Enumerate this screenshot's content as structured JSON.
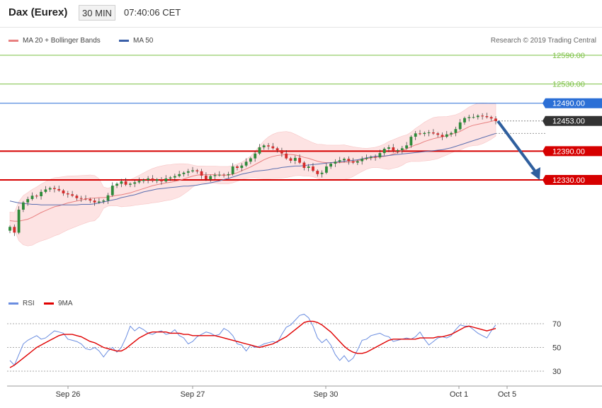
{
  "header": {
    "title": "Dax (Eurex)",
    "timeframe": "30 MIN",
    "clock": "07:40:06 CET"
  },
  "legend": {
    "ma20": "MA 20 + Bollinger Bands",
    "ma50": "MA 50",
    "credit": "Research © 2019 Trading Central",
    "rsi": "RSI",
    "rsi_ma": "9MA"
  },
  "colors": {
    "candle_up": "#2e8b3a",
    "candle_down": "#d62b2b",
    "ma20": "#e88080",
    "ma50": "#5b6fb0",
    "band_fill": "#fde3e3",
    "target_line": "#7bc043",
    "resistance_line": "#2b6fd6",
    "support_line": "#d60000",
    "current_label": "#333333",
    "arrow": "#2f5f9e",
    "rsi": "#6a8de0",
    "rsi_ma": "#e00000"
  },
  "chart_data": [
    {
      "type": "candlestick",
      "title": "Dax (Eurex)",
      "ylim": [
        12150,
        12600
      ],
      "x_tick_labels": [
        "Sep 26",
        "Sep 27",
        "Sep 30",
        "Oct 1",
        "Oct 5"
      ],
      "levels": [
        {
          "value": 12590.0,
          "label": "12590.00",
          "kind": "target"
        },
        {
          "value": 12530.0,
          "label": "12530.00",
          "kind": "target"
        },
        {
          "value": 12490.0,
          "label": "12490.00",
          "kind": "resistance"
        },
        {
          "value": 12453.0,
          "label": "12453.00",
          "kind": "current"
        },
        {
          "value": 12390.0,
          "label": "12390.00",
          "kind": "support"
        },
        {
          "value": 12330.0,
          "label": "12330.00",
          "kind": "support"
        }
      ],
      "close": [
        12232,
        12220,
        12268,
        12283,
        12290,
        12297,
        12296,
        12305,
        12310,
        12313,
        12311,
        12308,
        12302,
        12300,
        12297,
        12292,
        12291,
        12290,
        12287,
        12283,
        12285,
        12287,
        12298,
        12318,
        12322,
        12327,
        12320,
        12322,
        12325,
        12328,
        12330,
        12333,
        12328,
        12331,
        12327,
        12333,
        12335,
        12338,
        12342,
        12345,
        12348,
        12350,
        12348,
        12339,
        12331,
        12338,
        12340,
        12341,
        12340,
        12342,
        12358,
        12355,
        12360,
        12368,
        12375,
        12385,
        12398,
        12402,
        12400,
        12396,
        12392,
        12385,
        12375,
        12370,
        12376,
        12366,
        12355,
        12358,
        12349,
        12342,
        12345,
        12358,
        12364,
        12368,
        12371,
        12374,
        12369,
        12366,
        12369,
        12374,
        12376,
        12378,
        12377,
        12386,
        12395,
        12398,
        12390,
        12392,
        12396,
        12402,
        12420,
        12427,
        12426,
        12428,
        12429,
        12427,
        12424,
        12420,
        12425,
        12428,
        12436,
        12450,
        12459,
        12461,
        12461,
        12464,
        12463,
        12461,
        12458,
        12453
      ],
      "ma20": [
        12245,
        12244,
        12244,
        12246,
        12248,
        12252,
        12257,
        12262,
        12266,
        12270,
        12274,
        12276,
        12279,
        12282,
        12284,
        12286,
        12288,
        12290,
        12292,
        12292,
        12293,
        12293,
        12294,
        12296,
        12298,
        12299,
        12301,
        12303,
        12306,
        12309,
        12312,
        12315,
        12318,
        12320,
        12322,
        12324,
        12325,
        12327,
        12329,
        12332,
        12335,
        12338,
        12340,
        12341,
        12341,
        12341,
        12341,
        12340,
        12340,
        12340,
        12342,
        12345,
        12349,
        12353,
        12357,
        12362,
        12367,
        12372,
        12376,
        12379,
        12381,
        12382,
        12383,
        12383,
        12382,
        12380,
        12377,
        12375,
        12372,
        12369,
        12367,
        12366,
        12366,
        12366,
        12366,
        12367,
        12367,
        12368,
        12370,
        12372,
        12374,
        12376,
        12377,
        12378,
        12379,
        12381,
        12384,
        12387,
        12391,
        12395,
        12399,
        12403,
        12406,
        12410,
        12413,
        12416,
        12418,
        12420,
        12422,
        12425,
        12428,
        12431,
        12436,
        12441,
        12444,
        12446,
        12448,
        12450,
        12452,
        12455
      ],
      "ma50": [
        12286,
        12284,
        12282,
        12281,
        12280,
        12279,
        12279,
        12278,
        12278,
        12278,
        12278,
        12278,
        12278,
        12278,
        12278,
        12278,
        12279,
        12279,
        12279,
        12280,
        12282,
        12284,
        12286,
        12288,
        12290,
        12293,
        12295,
        12297,
        12299,
        12302,
        12305,
        12307,
        12309,
        12311,
        12312,
        12313,
        12314,
        12315,
        12316,
        12317,
        12317,
        12318,
        12319,
        12321,
        12322,
        12324,
        12326,
        12328,
        12331,
        12333,
        12336,
        12339,
        12342,
        12344,
        12346,
        12348,
        12349,
        12350,
        12351,
        12353,
        12354,
        12356,
        12357,
        12358,
        12359,
        12359,
        12360,
        12361,
        12362,
        12363,
        12364,
        12365,
        12366,
        12367,
        12368,
        12369,
        12370,
        12371,
        12372,
        12374,
        12376,
        12378,
        12379,
        12380,
        12380,
        12381,
        12382,
        12383,
        12384,
        12385,
        12386,
        12387,
        12388,
        12389,
        12390,
        12391,
        12392,
        12393,
        12395,
        12397,
        12400,
        12403,
        12406,
        12409,
        12412,
        12415,
        12418,
        12421,
        12424,
        12427
      ]
    },
    {
      "type": "line",
      "title": "RSI",
      "ylim": [
        20,
        80
      ],
      "y_ticks": [
        30,
        50,
        70
      ],
      "series": [
        {
          "name": "RSI",
          "values": [
            39,
            35,
            44,
            53,
            56,
            58,
            60,
            57,
            58,
            61,
            64,
            63,
            62,
            57,
            56,
            55,
            53,
            49,
            48,
            50,
            47,
            42,
            47,
            50,
            46,
            50,
            58,
            68,
            64,
            67,
            65,
            62,
            61,
            63,
            64,
            61,
            62,
            65,
            60,
            58,
            53,
            55,
            59,
            61,
            63,
            62,
            60,
            61,
            66,
            64,
            60,
            53,
            52,
            47,
            52,
            50,
            51,
            53,
            54,
            55,
            54,
            61,
            67,
            69,
            73,
            77,
            78,
            75,
            68,
            58,
            54,
            57,
            52,
            44,
            39,
            43,
            38,
            41,
            48,
            56,
            57,
            60,
            61,
            62,
            60,
            59,
            55,
            56,
            57,
            58,
            57,
            59,
            63,
            57,
            52,
            55,
            58,
            59,
            58,
            60,
            65,
            69,
            68,
            68,
            65,
            62,
            60,
            58,
            64,
            69
          ]
        },
        {
          "name": "9MA",
          "values": [
            33,
            35,
            38,
            41,
            44,
            47,
            50,
            52,
            54,
            56,
            58,
            60,
            61,
            61,
            61,
            60,
            59,
            57,
            55,
            54,
            52,
            50,
            49,
            48,
            47,
            47,
            49,
            52,
            55,
            58,
            60,
            62,
            63,
            63,
            63,
            63,
            62,
            62,
            62,
            61,
            61,
            60,
            60,
            60,
            60,
            60,
            60,
            59,
            58,
            57,
            56,
            55,
            54,
            53,
            52,
            51,
            50,
            51,
            52,
            53,
            55,
            57,
            59,
            62,
            65,
            68,
            71,
            72,
            72,
            71,
            69,
            66,
            63,
            59,
            55,
            51,
            48,
            46,
            45,
            45,
            46,
            48,
            50,
            52,
            54,
            56,
            57,
            57,
            57,
            57,
            57,
            57,
            58,
            58,
            58,
            58,
            59,
            59,
            60,
            61,
            63,
            65,
            67,
            68,
            67,
            66,
            65,
            64,
            65,
            66
          ]
        }
      ]
    }
  ]
}
